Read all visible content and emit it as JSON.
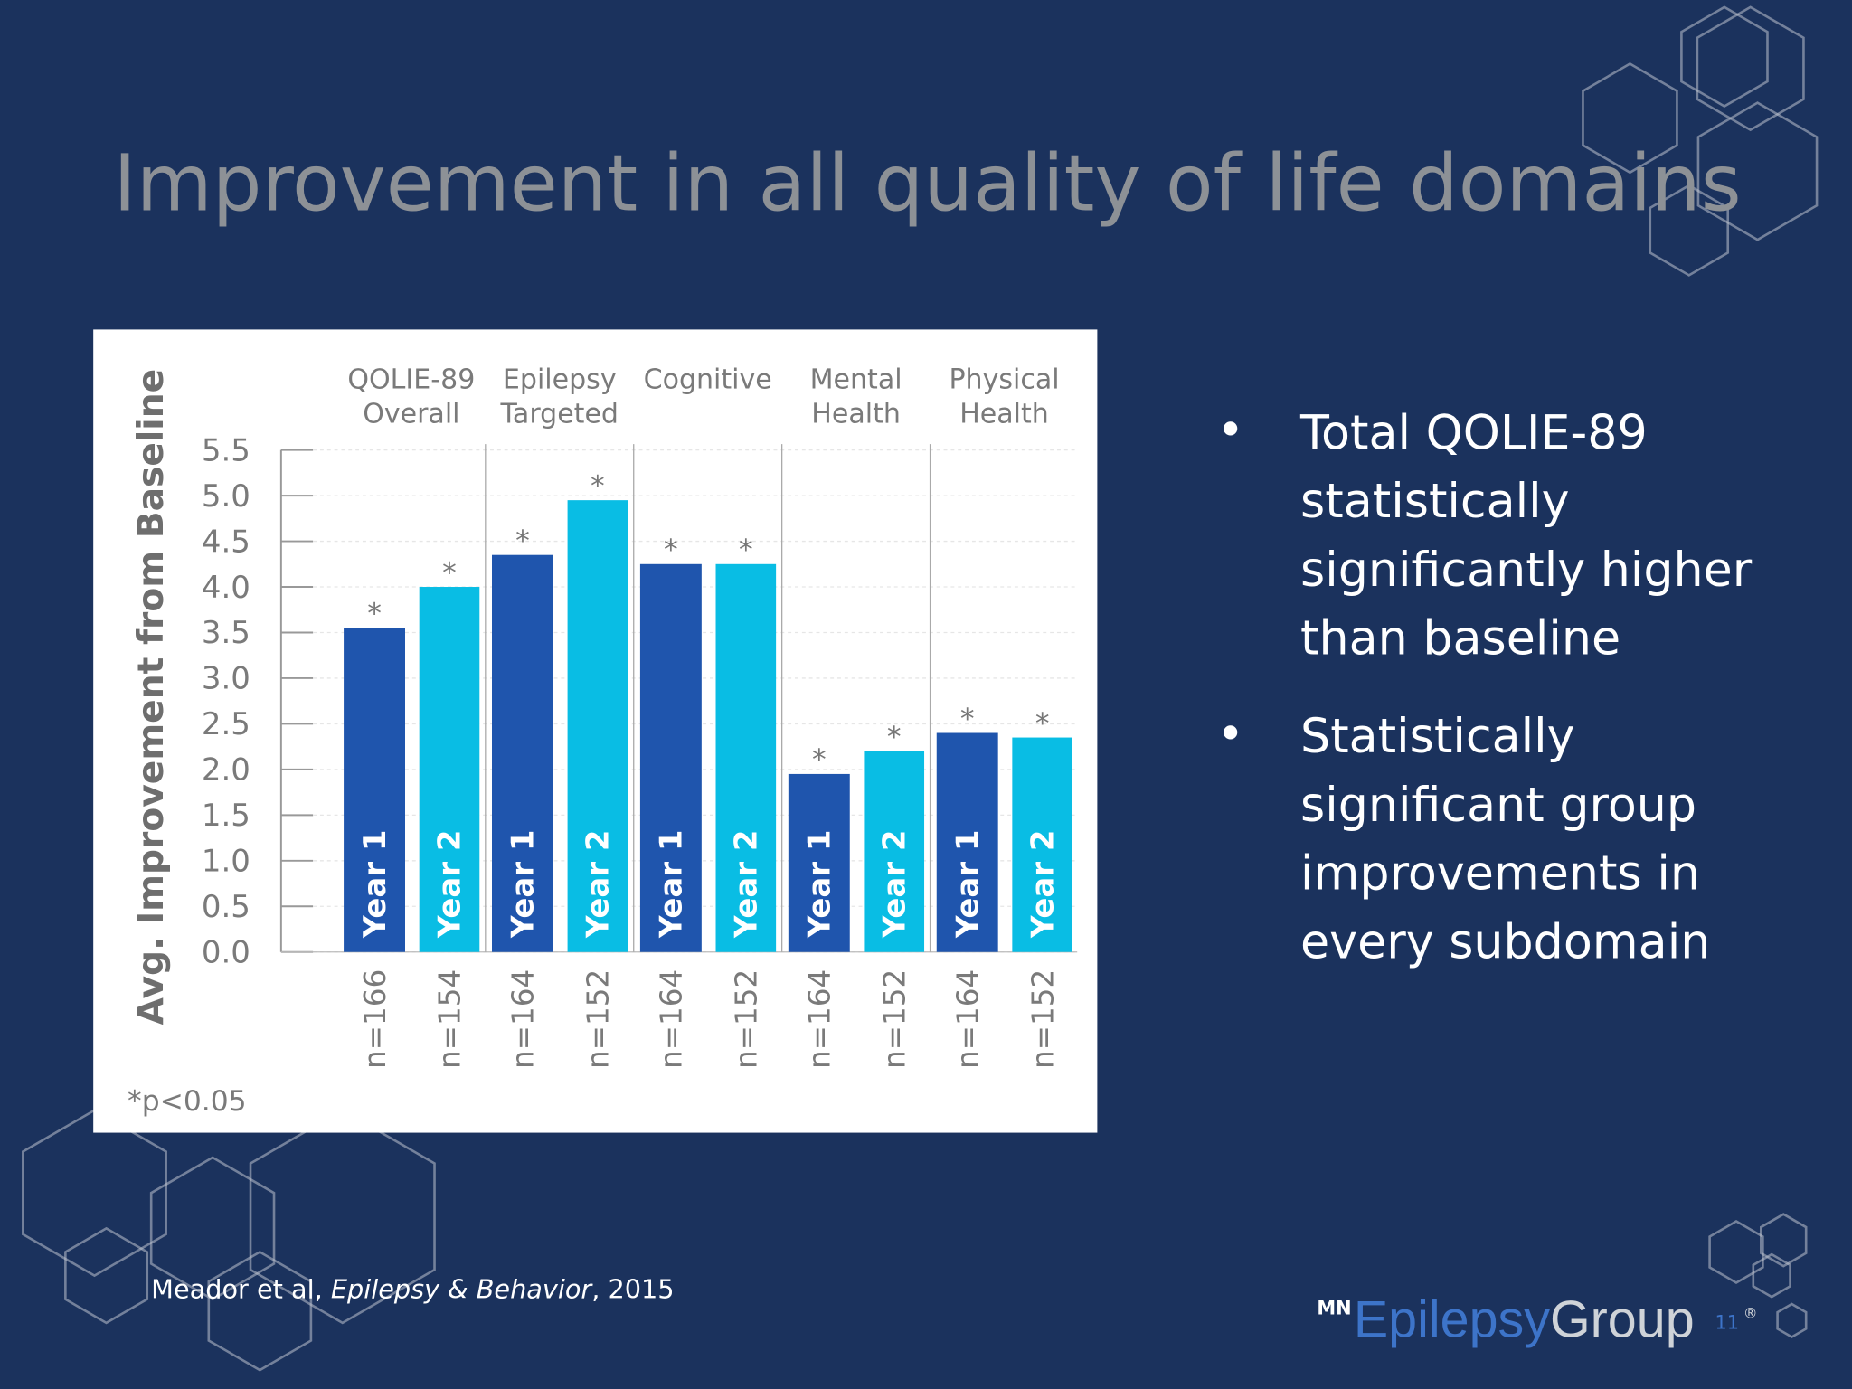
{
  "title": "Improvement in all quality of life domains",
  "bullets": [
    [
      "Total QOLIE-89",
      "statistically",
      "significantly higher",
      "than baseline"
    ],
    [
      "Statistically",
      "significant group",
      "improvements in",
      "every subdomain"
    ]
  ],
  "citation": {
    "authors": "Meador et al, ",
    "journal": "Epilepsy & Behavior",
    "year": ", 2015"
  },
  "logo": {
    "prefix": "MN",
    "first": "Epilepsy",
    "second": "Group",
    "mark": "®"
  },
  "page_number": "11",
  "chart_data": {
    "type": "bar",
    "y_label": "Avg. Improvement from Baseline",
    "footnote": "*p<0.05",
    "significance_marker": "*",
    "categories": [
      [
        "QOLIE-89",
        "Overall"
      ],
      [
        "Epilepsy",
        "Targeted"
      ],
      [
        "Cognitive"
      ],
      [
        "Mental",
        "Health"
      ],
      [
        "Physical",
        "Health"
      ]
    ],
    "series": [
      {
        "name": "Year 1",
        "color": "#1f55ad",
        "values": [
          3.55,
          4.35,
          4.25,
          1.95,
          2.4
        ],
        "n_labels": [
          "n=166",
          "n=164",
          "n=164",
          "n=164",
          "n=164"
        ]
      },
      {
        "name": "Year 2",
        "color": "#09bde4",
        "values": [
          4.0,
          4.95,
          4.25,
          2.2,
          2.35
        ],
        "n_labels": [
          "n=154",
          "n=152",
          "n=152",
          "n=152",
          "n=152"
        ]
      }
    ],
    "ylim": [
      0,
      5.5
    ],
    "yticks": [
      {
        "value": 0,
        "label": "0.0"
      },
      0.5,
      {
        "value": 1,
        "label": "1.0"
      },
      1.5,
      {
        "value": 2,
        "label": "2.0"
      },
      2.5,
      {
        "value": 3,
        "label": "3.0"
      },
      3.5,
      {
        "value": 4,
        "label": "4.0"
      },
      4.5,
      {
        "value": 5,
        "label": "5.0"
      },
      5.5
    ],
    "grid": true
  }
}
